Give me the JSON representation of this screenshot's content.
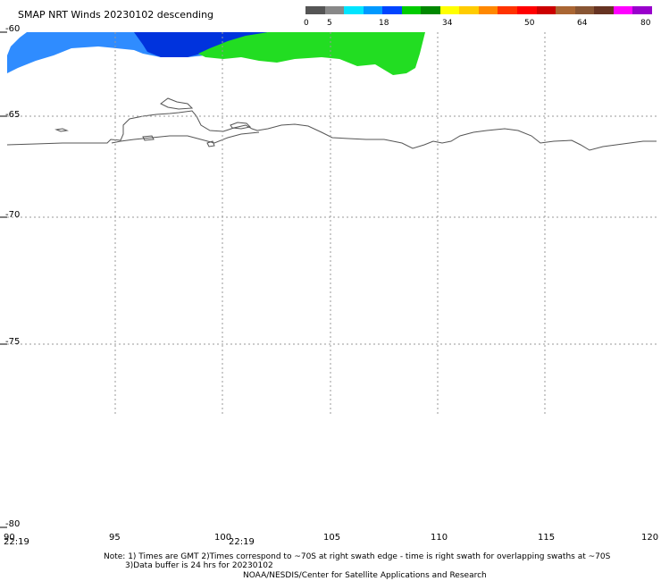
{
  "title": "SMAP NRT Winds  20230102 descending",
  "colorbar": {
    "labels": [
      "0",
      "5",
      "18",
      "34",
      "50",
      "64",
      "80"
    ],
    "colors": [
      "#555555",
      "#888888",
      "#00e5ff",
      "#0099ff",
      "#0044ff",
      "#00cc00",
      "#008800",
      "#ffff00",
      "#ffcc00",
      "#ff8800",
      "#ff3300",
      "#ff0000",
      "#cc0000",
      "#aa6633",
      "#885533",
      "#663322",
      "#ff00ff",
      "#9900cc"
    ]
  },
  "lat_labels": [
    "-60",
    "-65",
    "-70",
    "-75",
    "-80"
  ],
  "lon_labels": [
    "90",
    "95",
    "100",
    "105",
    "110",
    "115",
    "120"
  ],
  "time_labels": [
    "22:19",
    "22:19"
  ],
  "notes": {
    "line1": "Note: 1) Times are GMT 2)Times correspond to ~70S at right swath edge - time is right swath for overlapping swaths at ~70S",
    "line2": "3)Data buffer is 24 hrs for 20230102",
    "line3": "NOAA/NESDIS/Center for Satellite Applications and Research"
  },
  "colors": {
    "wind_blue_light": "#3399ff",
    "wind_blue_dark": "#0033dd",
    "wind_green": "#22dd22",
    "coastline": "#555555",
    "grid": "#999999"
  }
}
